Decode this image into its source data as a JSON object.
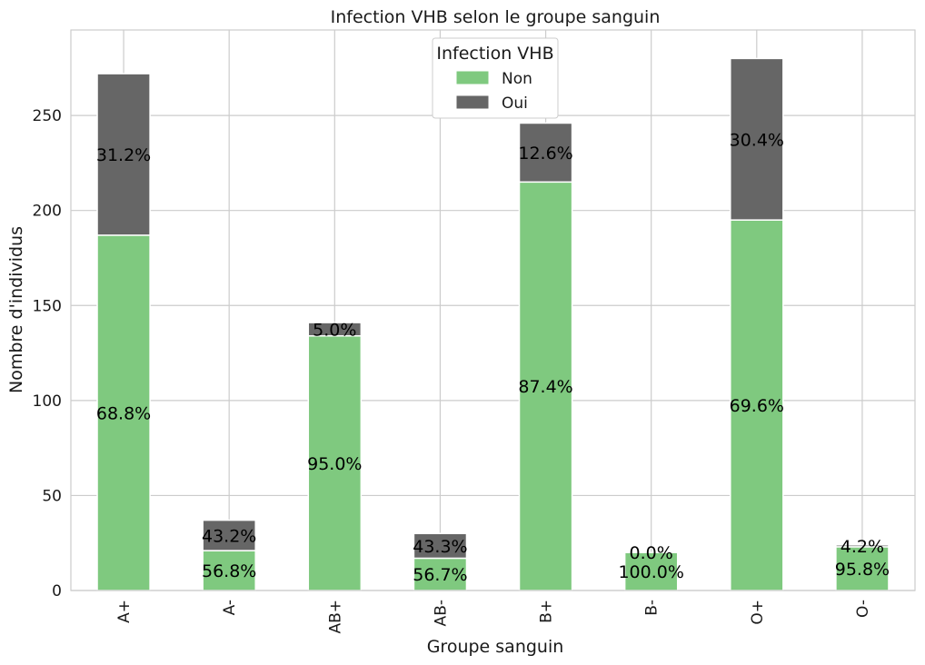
{
  "chart_data": {
    "type": "bar",
    "stacked": true,
    "title": "Infection VHB selon le groupe sanguin",
    "xlabel": "Groupe sanguin",
    "ylabel": "Nombre d'individus",
    "categories": [
      "A+",
      "A-",
      "AB+",
      "AB-",
      "B+",
      "B-",
      "O+",
      "O-"
    ],
    "series": [
      {
        "name": "Non",
        "color": "#7fc97f",
        "values": [
          187,
          21,
          134,
          17,
          215,
          20,
          195,
          23
        ],
        "labels": [
          "68.8%",
          "56.8%",
          "95.0%",
          "56.7%",
          "87.4%",
          "100.0%",
          "69.6%",
          "95.8%"
        ]
      },
      {
        "name": "Oui",
        "color": "#666666",
        "values": [
          85,
          16,
          7,
          13,
          31,
          0,
          85,
          1
        ],
        "labels": [
          "31.2%",
          "43.2%",
          "5.0%",
          "43.3%",
          "12.6%",
          "0.0%",
          "30.4%",
          "4.2%"
        ]
      }
    ],
    "yticks": [
      0,
      50,
      100,
      150,
      200,
      250
    ],
    "ylim": [
      0,
      295
    ],
    "grid": true,
    "legend": {
      "title": "Infection VHB",
      "position": "top-center"
    }
  }
}
